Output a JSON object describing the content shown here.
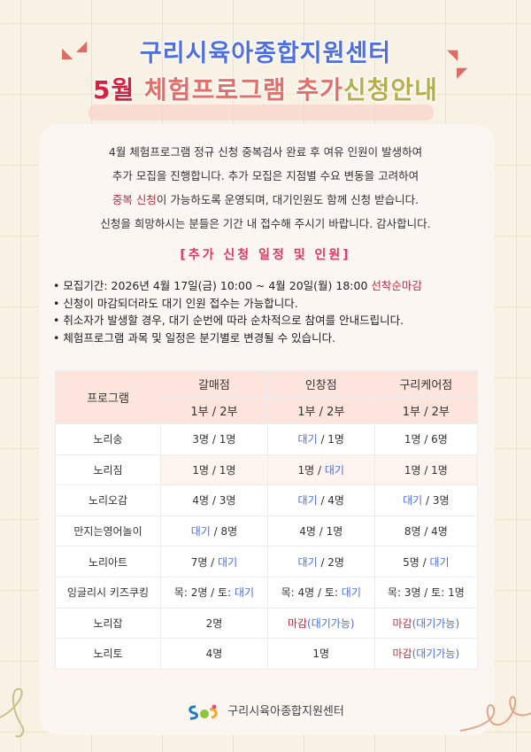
{
  "header": {
    "title_line1": "구리시육아종합지원센터",
    "title_line2_month": "5월",
    "title_line2_program": "체험프로그램",
    "title_line2_part1": "추가",
    "title_line2_part2": "신청안내"
  },
  "intro": {
    "line1": "4월 체험프로그램 정규 신청  중복검사 완료 후 여유 인원이 발생하여",
    "line2": "추가 모집을 진행합니다. 추가 모집은  지점별 수요 변동을 고려하여",
    "line3_highlight": "중복 신청",
    "line3_rest": "이 가능하도록 운영되며,  대기인원도 함께 신청 받습니다.",
    "line4": "신청을 희망하시는 분들은 기간 내 접수해 주시기 바랍니다. 감사합니다."
  },
  "section_title": "[추가 신청 일정 및 인원]",
  "bullets": {
    "b1": "모집기간: 2026년 4월 17일(금) 10:00 ~ 4월 20일(월) 18:00 ",
    "b1_highlight": "선착순마감",
    "b2": "신청이 마감되더라도 대기 인원 접수는 가능합니다.",
    "b3": "취소자가 발생할 경우, 대기 순번에 따라 순차적으로 참여를 안내드립니다.",
    "b4": "체험프로그램 과목 및 일정은 분기별로 변경될 수 있습니다."
  },
  "table": {
    "program_header": "프로그램",
    "branches": [
      "갈매점",
      "인창점",
      "구리케어점"
    ],
    "session_label": "1부 / 2부",
    "rows": [
      {
        "program": "노리송",
        "cells": [
          [
            {
              "t": "3명 /  1명"
            }
          ],
          [
            {
              "t": "대기",
              "c": "blue"
            },
            {
              "t": " / 1명"
            }
          ],
          [
            {
              "t": "1명 / 6명"
            }
          ]
        ]
      },
      {
        "program": "노리짐",
        "cells": [
          [
            {
              "t": "1명 / 1명"
            }
          ],
          [
            {
              "t": "1명 / "
            },
            {
              "t": "대기",
              "c": "blue"
            }
          ],
          [
            {
              "t": "1명 / 1명"
            }
          ]
        ]
      },
      {
        "program": "노리오감",
        "cells": [
          [
            {
              "t": "4명 / 3명"
            }
          ],
          [
            {
              "t": "대기",
              "c": "blue"
            },
            {
              "t": " / 4명"
            }
          ],
          [
            {
              "t": "대기",
              "c": "blue"
            },
            {
              "t": " / 3명"
            }
          ]
        ]
      },
      {
        "program": "만지는영어놀이",
        "cells": [
          [
            {
              "t": "대기",
              "c": "blue"
            },
            {
              "t": " / 8명"
            }
          ],
          [
            {
              "t": "4명 / 1명"
            }
          ],
          [
            {
              "t": "8명 / 4명"
            }
          ]
        ]
      },
      {
        "program": "노리아트",
        "cells": [
          [
            {
              "t": "7명 /  "
            },
            {
              "t": "대기",
              "c": "blue"
            }
          ],
          [
            {
              "t": "대기",
              "c": "blue"
            },
            {
              "t": " / 2명"
            }
          ],
          [
            {
              "t": "5명 / "
            },
            {
              "t": "대기",
              "c": "blue"
            }
          ]
        ]
      },
      {
        "program": "잉글리시 키즈쿠킹",
        "cells": [
          [
            {
              "t": "목: 2명 / 토: "
            },
            {
              "t": "대기",
              "c": "blue"
            }
          ],
          [
            {
              "t": "목: 4명 / 토: "
            },
            {
              "t": "대기",
              "c": "blue"
            }
          ],
          [
            {
              "t": "목: 3명 / 토: 1명"
            }
          ]
        ]
      },
      {
        "program": "노리잡",
        "cells": [
          [
            {
              "t": "2명"
            }
          ],
          [
            {
              "t": "마감",
              "c": "cl"
            },
            {
              "t": "(대기가능)",
              "c": "blue"
            }
          ],
          [
            {
              "t": "마감",
              "c": "cl"
            },
            {
              "t": "(대기가능)",
              "c": "blue"
            }
          ]
        ]
      },
      {
        "program": "노리토",
        "cells": [
          [
            {
              "t": "4명"
            }
          ],
          [
            {
              "t": "1명"
            }
          ],
          [
            {
              "t": "마감",
              "c": "cl"
            },
            {
              "t": "(대기가능)",
              "c": "blue"
            }
          ]
        ]
      }
    ]
  },
  "footer": {
    "org_name": "구리시육아종합지원센터"
  },
  "colors": {
    "blue": "#4a6fe0",
    "red": "#cc2a43",
    "title_blue": "#4f6fe0",
    "header_bg": "#fde4dc"
  }
}
